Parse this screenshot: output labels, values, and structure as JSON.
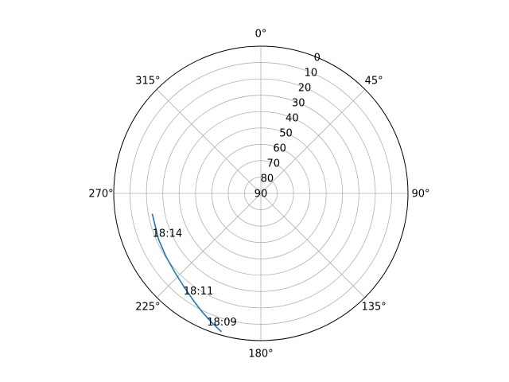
{
  "chart_data": {
    "type": "line",
    "projection": "polar",
    "theta_zero_location": "N",
    "theta_direction": "clockwise",
    "r_axis_reversed": true,
    "rlim": [
      90,
      0
    ],
    "theta_ticks": [
      {
        "deg": 0,
        "label": "0°"
      },
      {
        "deg": 45,
        "label": "45°"
      },
      {
        "deg": 90,
        "label": "90°"
      },
      {
        "deg": 135,
        "label": "135°"
      },
      {
        "deg": 180,
        "label": "180°"
      },
      {
        "deg": 225,
        "label": "225°"
      },
      {
        "deg": 270,
        "label": "270°"
      },
      {
        "deg": 315,
        "label": "315°"
      }
    ],
    "r_ticks": [
      {
        "value": 0,
        "label": "0"
      },
      {
        "value": 10,
        "label": "10"
      },
      {
        "value": 20,
        "label": "20"
      },
      {
        "value": 30,
        "label": "30"
      },
      {
        "value": 40,
        "label": "40"
      },
      {
        "value": 50,
        "label": "50"
      },
      {
        "value": 60,
        "label": "60"
      },
      {
        "value": 70,
        "label": "70"
      },
      {
        "value": 80,
        "label": "80"
      },
      {
        "value": 90,
        "label": "90"
      }
    ],
    "grid": true,
    "series": [
      {
        "color": "#1f77b4",
        "points": [
          {
            "azimuth": 195.9,
            "elevation": 2.0
          },
          {
            "azimuth": 201.0,
            "elevation": 5.6
          },
          {
            "azimuth": 206.3,
            "elevation": 9.1
          },
          {
            "azimuth": 212.0,
            "elevation": 12.5
          },
          {
            "azimuth": 218.7,
            "elevation": 15.7
          },
          {
            "azimuth": 227.5,
            "elevation": 18.6
          },
          {
            "azimuth": 236.3,
            "elevation": 20.3
          },
          {
            "azimuth": 245.9,
            "elevation": 21.4
          },
          {
            "azimuth": 259.4,
            "elevation": 22.4
          }
        ]
      }
    ],
    "annotations": [
      {
        "text": "18:09",
        "azimuth": 196.9,
        "elevation": 8.0
      },
      {
        "text": "18:11",
        "azimuth": 212.7,
        "elevation": 19.3
      },
      {
        "text": "18:14",
        "azimuth": 246.9,
        "elevation": 27.8
      }
    ]
  }
}
